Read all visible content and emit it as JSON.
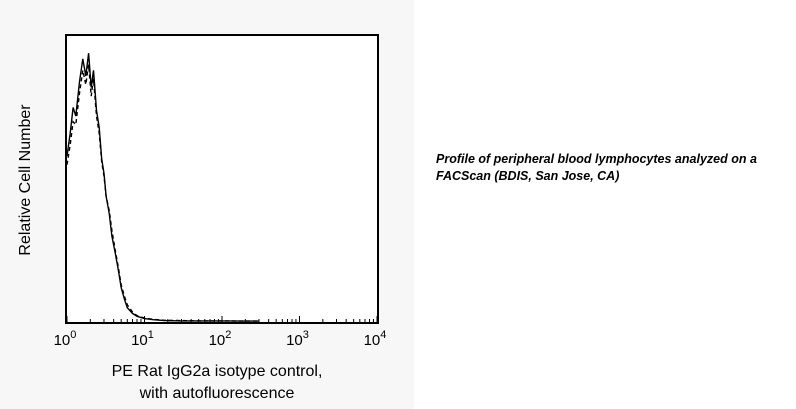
{
  "chart_data": {
    "type": "line",
    "xlabel_lines": [
      "PE Rat IgG2a isotype control,",
      "with autofluorescence"
    ],
    "ylabel": "Relative Cell Number",
    "x_scale": "log",
    "xlim": [
      1,
      10000
    ],
    "ylim": [
      0,
      100
    ],
    "x_ticks": [
      {
        "base": "10",
        "exp": "0"
      },
      {
        "base": "10",
        "exp": "1"
      },
      {
        "base": "10",
        "exp": "2"
      },
      {
        "base": "10",
        "exp": "3"
      },
      {
        "base": "10",
        "exp": "4"
      }
    ],
    "grid": false,
    "series": [
      {
        "style": "solid",
        "color": "#000000",
        "x": [
          1.0,
          1.1,
          1.2,
          1.3,
          1.45,
          1.6,
          1.75,
          1.9,
          2.05,
          2.2,
          2.4,
          2.6,
          2.8,
          3.0,
          3.2,
          3.5,
          3.8,
          4.2,
          4.6,
          5.0,
          5.5,
          6.0,
          7.0,
          8.0,
          10,
          13,
          18,
          30,
          50,
          100,
          200,
          300
        ],
        "y": [
          58,
          66,
          75,
          72,
          84,
          92,
          86,
          94,
          82,
          88,
          74,
          68,
          57,
          52,
          44,
          38,
          30,
          24,
          18,
          12,
          8,
          5,
          3,
          2,
          1.2,
          0.8,
          0.5,
          0.4,
          0.4,
          0.4,
          0.3,
          0.3
        ]
      },
      {
        "style": "dashed",
        "color": "#000000",
        "x": [
          1.0,
          1.1,
          1.2,
          1.3,
          1.45,
          1.6,
          1.75,
          1.9,
          2.05,
          2.2,
          2.4,
          2.6,
          2.8,
          3.0,
          3.2,
          3.5,
          3.8,
          4.2,
          4.6,
          5.0,
          5.5,
          6.0,
          7.0,
          8.0,
          10,
          13,
          18,
          30,
          50,
          100,
          200,
          300
        ],
        "y": [
          55,
          62,
          70,
          69,
          80,
          88,
          83,
          90,
          79,
          85,
          72,
          66,
          56,
          51,
          44,
          39,
          32,
          25,
          19,
          13,
          9,
          6,
          3.5,
          2.2,
          1.4,
          0.9,
          0.6,
          0.5,
          0.4,
          0.4,
          0.3,
          0.3
        ]
      }
    ]
  },
  "caption": {
    "line1": "Profile of peripheral blood lymphocytes analyzed on a",
    "line2": "FACScan (BDIS, San Jose, CA)"
  }
}
